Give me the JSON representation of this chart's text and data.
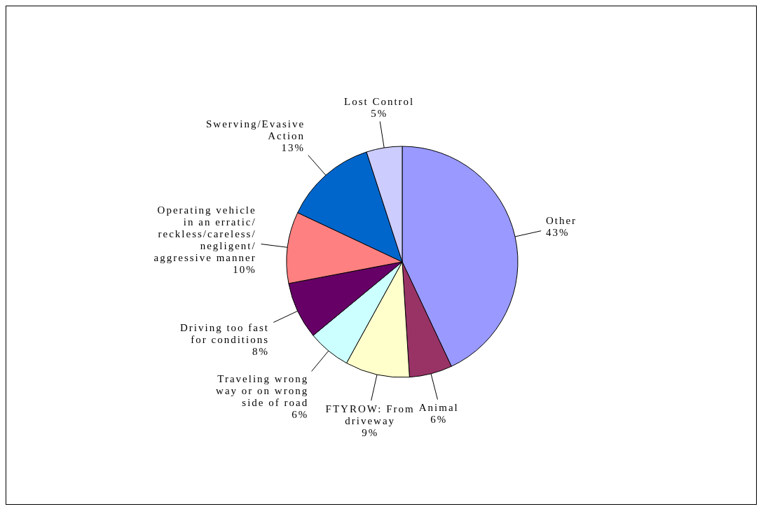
{
  "chart_data": {
    "type": "pie",
    "categories": [
      "Other",
      "Animal",
      "FTYROW: From driveway",
      "Traveling wrong way or on wrong side of road",
      "Driving too fast for conditions",
      "Operating vehicle in an erratic/reckless/careless/negligent/aggressive manner",
      "Swerving/Evasive Action",
      "Lost Control"
    ],
    "values": [
      43,
      6,
      9,
      6,
      8,
      10,
      13,
      5
    ],
    "value_labels": [
      "43%",
      "6%",
      "9%",
      "6%",
      "8%",
      "10%",
      "13%",
      "5%"
    ],
    "colors": [
      "#9999ff",
      "#993366",
      "#ffffcc",
      "#ccffff",
      "#660066",
      "#ff8080",
      "#0066cc",
      "#ccccff"
    ],
    "legend": false
  }
}
